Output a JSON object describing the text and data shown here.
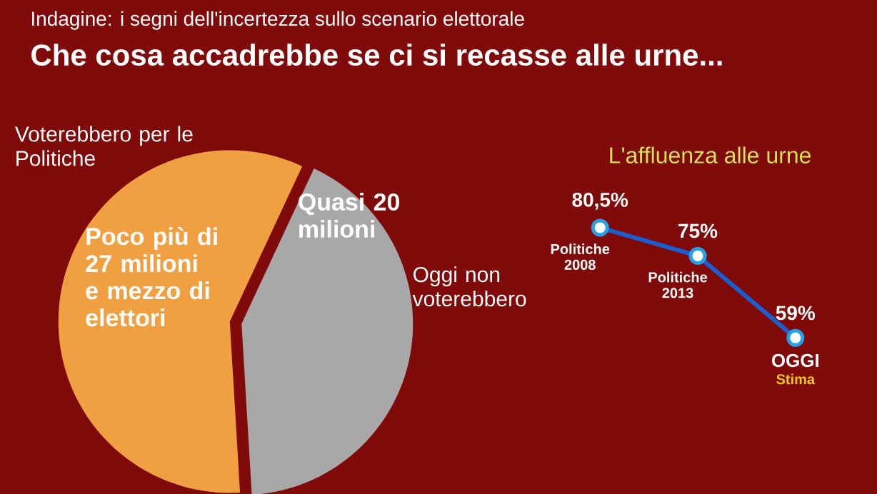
{
  "chart_data": [
    {
      "type": "pie",
      "title": "Indagine: i segni dell'incertezza sullo scenario elettorale",
      "subtitle": "Che cosa accadrebbe se ci si recasse alle urne...",
      "categories": [
        "Voterebbero per le Politiche",
        "Oggi non voterebbero"
      ],
      "values": [
        27.5,
        20
      ],
      "colors": [
        "#f0a040",
        "#a8a8a8"
      ],
      "value_labels": [
        "Poco più di 27 milioni e mezzo di elettori",
        "Quasi 20 milioni"
      ]
    },
    {
      "type": "line",
      "title": "L'affluenza alle urne",
      "categories": [
        "Politiche 2008",
        "Politiche 2013",
        "OGGI"
      ],
      "values": [
        80.5,
        75,
        59
      ],
      "color": "#1a5fd0",
      "marker": "circle",
      "value_labels": [
        "80,5%",
        "75%",
        "59%"
      ],
      "annotations": [
        "Stima"
      ]
    }
  ]
}
